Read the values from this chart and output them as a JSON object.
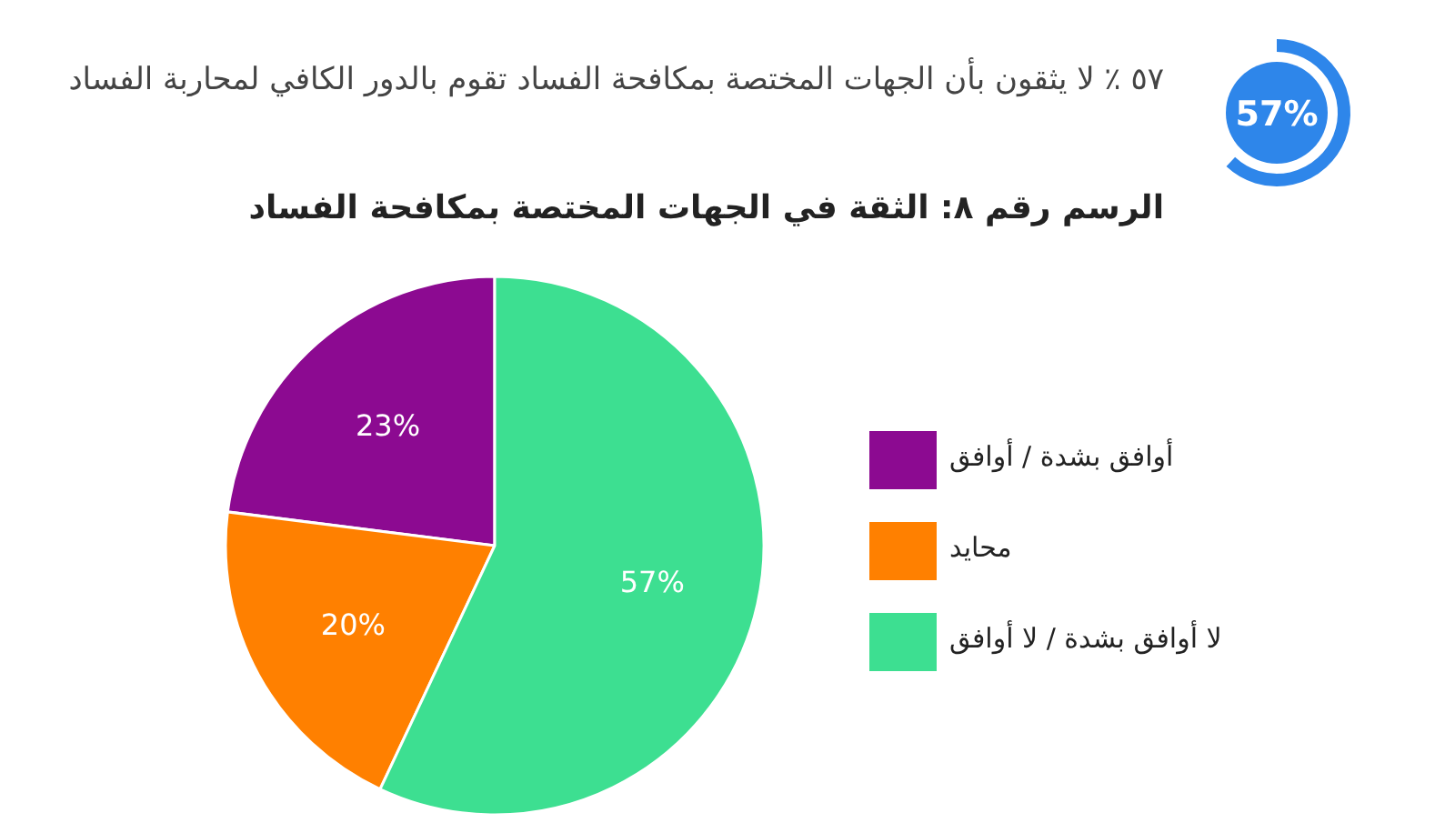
{
  "chart_data": {
    "type": "pie",
    "title": "الرسم رقم ٨: الثقة في الجهات المختصة بمكافحة الفساد",
    "subtitle": "٥٧ ٪ لا يثقون بأن الجهات المختصة بمكافحة الفساد تقوم بالدور الكافي لمحاربة الفساد",
    "annotations": [
      "57%"
    ],
    "categories": [
      "أوافق بشدة / أوافق",
      "محايد",
      "لا أوافق بشدة / لا أوافق"
    ],
    "values": [
      23,
      20,
      57
    ],
    "value_labels": [
      "23%",
      "20%",
      "57%"
    ],
    "colors": [
      "#8c0a91",
      "#ff8000",
      "#3ddf91"
    ],
    "legend": "right"
  }
}
